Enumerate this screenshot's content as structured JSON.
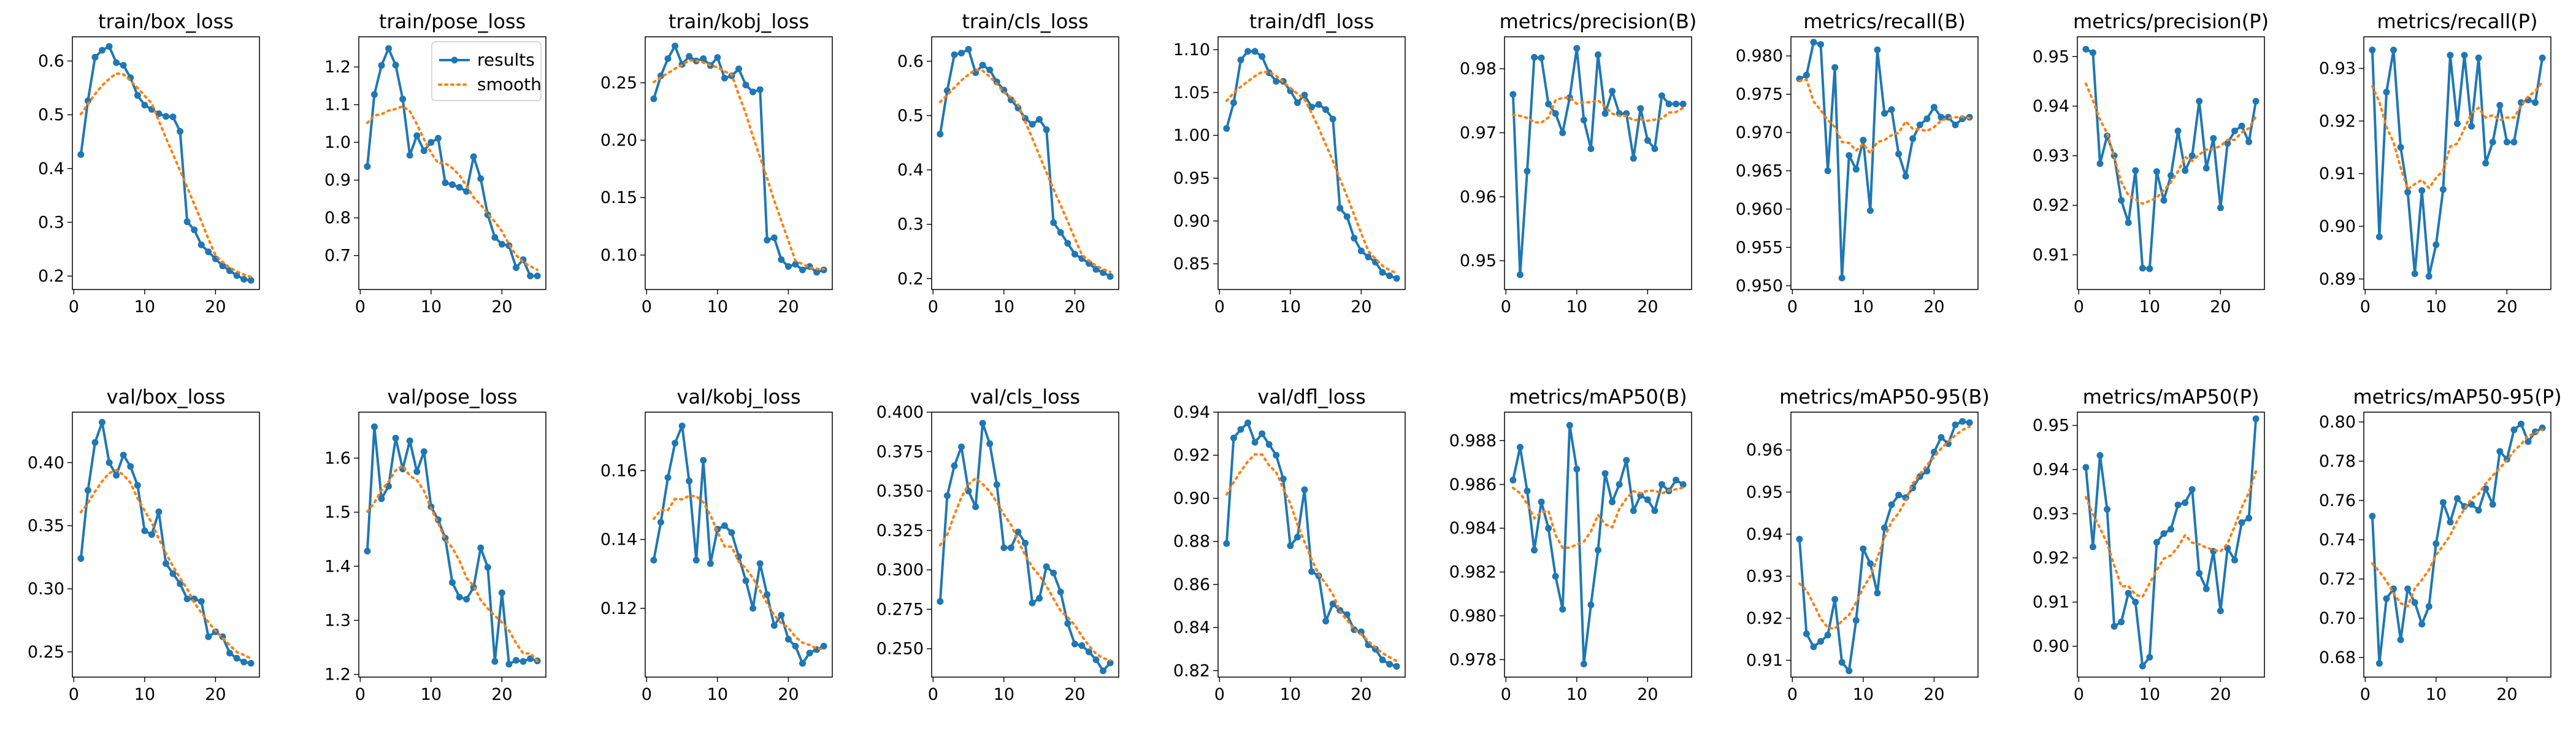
{
  "chart_data": {
    "type": "line",
    "legend": {
      "location": "upper right",
      "entries": [
        "results",
        "smooth"
      ]
    },
    "colors": {
      "results": "#1f77b4",
      "smooth": "#ff7f0e"
    },
    "x": [
      1,
      2,
      3,
      4,
      5,
      6,
      7,
      8,
      9,
      10,
      11,
      12,
      13,
      14,
      15,
      16,
      17,
      18,
      19,
      20,
      21,
      22,
      23,
      24,
      25
    ],
    "panels": [
      {
        "title": "train/box_loss",
        "ylim": [
          0.175,
          0.645
        ],
        "yticks": [
          0.2,
          0.3,
          0.4,
          0.5,
          0.6
        ],
        "ytick_labels": [
          "0.2",
          "0.3",
          "0.4",
          "0.5",
          "0.6"
        ],
        "xticks": [
          0,
          10,
          20
        ],
        "values": [
          0.426,
          0.526,
          0.607,
          0.62,
          0.627,
          0.597,
          0.592,
          0.569,
          0.536,
          0.518,
          0.51,
          0.502,
          0.497,
          0.496,
          0.469,
          0.301,
          0.286,
          0.258,
          0.245,
          0.232,
          0.219,
          0.21,
          0.201,
          0.194,
          0.192
        ]
      },
      {
        "title": "train/pose_loss",
        "ylim": [
          0.61,
          1.28
        ],
        "yticks": [
          0.7,
          0.8,
          0.9,
          1.0,
          1.1,
          1.2
        ],
        "ytick_labels": [
          "0.7",
          "0.8",
          "0.9",
          "1.0",
          "1.1",
          "1.2"
        ],
        "xticks": [
          0,
          10,
          20
        ],
        "values": [
          0.936,
          1.127,
          1.204,
          1.249,
          1.205,
          1.115,
          0.966,
          1.018,
          0.978,
          1.0,
          1.011,
          0.893,
          0.888,
          0.881,
          0.87,
          0.962,
          0.904,
          0.808,
          0.748,
          0.73,
          0.726,
          0.668,
          0.689,
          0.646,
          0.646
        ]
      },
      {
        "title": "train/kobj_loss",
        "ylim": [
          0.07,
          0.29
        ],
        "yticks": [
          0.1,
          0.15,
          0.2,
          0.25
        ],
        "ytick_labels": [
          "0.10",
          "0.15",
          "0.20",
          "0.25"
        ],
        "xticks": [
          0,
          10,
          20
        ],
        "values": [
          0.236,
          0.256,
          0.271,
          0.282,
          0.266,
          0.273,
          0.269,
          0.271,
          0.265,
          0.272,
          0.254,
          0.256,
          0.262,
          0.248,
          0.242,
          0.244,
          0.113,
          0.115,
          0.096,
          0.09,
          0.092,
          0.087,
          0.09,
          0.085,
          0.087
        ]
      },
      {
        "title": "train/cls_loss",
        "ylim": [
          0.18,
          0.645
        ],
        "yticks": [
          0.2,
          0.3,
          0.4,
          0.5,
          0.6
        ],
        "ytick_labels": [
          "0.2",
          "0.3",
          "0.4",
          "0.5",
          "0.6"
        ],
        "xticks": [
          0,
          10,
          20
        ],
        "values": [
          0.466,
          0.546,
          0.612,
          0.615,
          0.622,
          0.579,
          0.593,
          0.584,
          0.562,
          0.547,
          0.529,
          0.514,
          0.495,
          0.484,
          0.493,
          0.474,
          0.303,
          0.285,
          0.265,
          0.245,
          0.237,
          0.228,
          0.217,
          0.211,
          0.204
        ]
      },
      {
        "title": "train/dfl_loss",
        "ylim": [
          0.82,
          1.115
        ],
        "yticks": [
          0.85,
          0.9,
          0.95,
          1.0,
          1.05,
          1.1
        ],
        "ytick_labels": [
          "0.85",
          "0.90",
          "0.95",
          "1.00",
          "1.05",
          "1.10"
        ],
        "xticks": [
          0,
          10,
          20
        ],
        "values": [
          1.008,
          1.038,
          1.088,
          1.098,
          1.098,
          1.092,
          1.073,
          1.063,
          1.063,
          1.052,
          1.038,
          1.047,
          1.033,
          1.036,
          1.03,
          1.019,
          0.915,
          0.905,
          0.88,
          0.865,
          0.858,
          0.852,
          0.84,
          0.836,
          0.833
        ]
      },
      {
        "title": "metrics/precision(B)",
        "ylim": [
          0.9455,
          0.985
        ],
        "yticks": [
          0.95,
          0.96,
          0.97,
          0.98
        ],
        "ytick_labels": [
          "0.95",
          "0.96",
          "0.97",
          "0.98"
        ],
        "xticks": [
          0,
          10,
          20
        ],
        "values": [
          0.976,
          0.9478,
          0.964,
          0.9818,
          0.9817,
          0.9745,
          0.973,
          0.97,
          0.9755,
          0.9832,
          0.972,
          0.9675,
          0.9822,
          0.973,
          0.9765,
          0.973,
          0.973,
          0.966,
          0.9738,
          0.9688,
          0.9675,
          0.9758,
          0.9745,
          0.9745,
          0.9745
        ]
      },
      {
        "title": "metrics/recall(B)",
        "ylim": [
          0.9495,
          0.9825
        ],
        "yticks": [
          0.95,
          0.955,
          0.96,
          0.965,
          0.97,
          0.975,
          0.98
        ],
        "ytick_labels": [
          "0.950",
          "0.955",
          "0.960",
          "0.965",
          "0.970",
          "0.975",
          "0.980"
        ],
        "xticks": [
          0,
          10,
          20
        ],
        "values": [
          0.977,
          0.9775,
          0.9818,
          0.9815,
          0.965,
          0.9785,
          0.951,
          0.967,
          0.9652,
          0.969,
          0.9598,
          0.9808,
          0.9725,
          0.973,
          0.9672,
          0.9643,
          0.9692,
          0.971,
          0.9718,
          0.9733,
          0.972,
          0.972,
          0.971,
          0.9718,
          0.972
        ]
      },
      {
        "title": "metrics/precision(P)",
        "ylim": [
          0.903,
          0.954
        ],
        "yticks": [
          0.91,
          0.92,
          0.93,
          0.94,
          0.95
        ],
        "ytick_labels": [
          "0.91",
          "0.92",
          "0.93",
          "0.94",
          "0.95"
        ],
        "xticks": [
          0,
          10,
          20
        ],
        "values": [
          0.9515,
          0.9508,
          0.9284,
          0.934,
          0.93,
          0.921,
          0.9165,
          0.927,
          0.9073,
          0.9072,
          0.9268,
          0.921,
          0.926,
          0.935,
          0.927,
          0.93,
          0.941,
          0.9275,
          0.9335,
          0.9195,
          0.9325,
          0.935,
          0.936,
          0.9328,
          0.941
        ]
      },
      {
        "title": "metrics/recall(P)",
        "ylim": [
          0.888,
          0.936
        ],
        "yticks": [
          0.89,
          0.9,
          0.91,
          0.92,
          0.93
        ],
        "ytick_labels": [
          "0.89",
          "0.90",
          "0.91",
          "0.92",
          "0.93"
        ],
        "xticks": [
          0,
          10,
          20
        ],
        "values": [
          0.9335,
          0.898,
          0.9255,
          0.9335,
          0.915,
          0.9065,
          0.891,
          0.9068,
          0.8905,
          0.8965,
          0.907,
          0.9325,
          0.9195,
          0.9325,
          0.919,
          0.932,
          0.912,
          0.916,
          0.923,
          0.916,
          0.916,
          0.9235,
          0.924,
          0.9235,
          0.932
        ]
      },
      {
        "title": "val/box_loss",
        "ylim": [
          0.23,
          0.44
        ],
        "yticks": [
          0.25,
          0.3,
          0.35,
          0.4
        ],
        "ytick_labels": [
          "0.25",
          "0.30",
          "0.35",
          "0.40"
        ],
        "xticks": [
          0,
          10,
          20
        ],
        "values": [
          0.324,
          0.378,
          0.416,
          0.432,
          0.4,
          0.39,
          0.406,
          0.397,
          0.382,
          0.346,
          0.343,
          0.361,
          0.32,
          0.312,
          0.304,
          0.292,
          0.292,
          0.29,
          0.262,
          0.266,
          0.262,
          0.249,
          0.245,
          0.242,
          0.241
        ]
      },
      {
        "title": "val/pose_loss",
        "ylim": [
          1.195,
          1.685
        ],
        "yticks": [
          1.2,
          1.3,
          1.4,
          1.5,
          1.6
        ],
        "ytick_labels": [
          "1.2",
          "1.3",
          "1.4",
          "1.5",
          "1.6"
        ],
        "xticks": [
          0,
          10,
          20
        ],
        "values": [
          1.428,
          1.658,
          1.525,
          1.548,
          1.637,
          1.58,
          1.632,
          1.575,
          1.612,
          1.51,
          1.486,
          1.452,
          1.37,
          1.343,
          1.339,
          1.361,
          1.434,
          1.398,
          1.224,
          1.351,
          1.219,
          1.226,
          1.224,
          1.229,
          1.225
        ]
      },
      {
        "title": "val/kobj_loss",
        "ylim": [
          0.1,
          0.177
        ],
        "yticks": [
          0.12,
          0.14,
          0.16
        ],
        "ytick_labels": [
          "0.12",
          "0.14",
          "0.16"
        ],
        "xticks": [
          0,
          10,
          20
        ],
        "values": [
          0.134,
          0.145,
          0.158,
          0.168,
          0.173,
          0.157,
          0.134,
          0.163,
          0.133,
          0.143,
          0.144,
          0.142,
          0.135,
          0.128,
          0.12,
          0.133,
          0.124,
          0.115,
          0.118,
          0.111,
          0.109,
          0.104,
          0.107,
          0.108,
          0.109
        ]
      },
      {
        "title": "val/cls_loss",
        "ylim": [
          0.232,
          0.4
        ],
        "yticks": [
          0.25,
          0.275,
          0.3,
          0.325,
          0.35,
          0.375,
          0.4
        ],
        "ytick_labels": [
          "0.250",
          "0.275",
          "0.300",
          "0.325",
          "0.350",
          "0.375",
          "0.400"
        ],
        "xticks": [
          0,
          10,
          20
        ],
        "values": [
          0.28,
          0.347,
          0.366,
          0.378,
          0.35,
          0.34,
          0.393,
          0.38,
          0.354,
          0.314,
          0.314,
          0.324,
          0.317,
          0.279,
          0.282,
          0.302,
          0.298,
          0.286,
          0.266,
          0.253,
          0.252,
          0.248,
          0.243,
          0.236,
          0.241
        ]
      },
      {
        "title": "val/dfl_loss",
        "ylim": [
          0.817,
          0.94
        ],
        "yticks": [
          0.82,
          0.84,
          0.86,
          0.88,
          0.9,
          0.92,
          0.94
        ],
        "ytick_labels": [
          "0.82",
          "0.84",
          "0.86",
          "0.88",
          "0.90",
          "0.92",
          "0.94"
        ],
        "xticks": [
          0,
          10,
          20
        ],
        "values": [
          0.879,
          0.928,
          0.932,
          0.935,
          0.926,
          0.93,
          0.925,
          0.92,
          0.909,
          0.878,
          0.882,
          0.904,
          0.866,
          0.864,
          0.843,
          0.851,
          0.848,
          0.846,
          0.839,
          0.838,
          0.832,
          0.83,
          0.825,
          0.823,
          0.822
        ]
      },
      {
        "title": "metrics/mAP50(B)",
        "ylim": [
          0.9772,
          0.9893
        ],
        "yticks": [
          0.978,
          0.98,
          0.982,
          0.984,
          0.986,
          0.988
        ],
        "ytick_labels": [
          "0.978",
          "0.980",
          "0.982",
          "0.984",
          "0.986",
          "0.988"
        ],
        "xticks": [
          0,
          10,
          20
        ],
        "values": [
          0.9862,
          0.9877,
          0.9857,
          0.983,
          0.9852,
          0.984,
          0.9818,
          0.9803,
          0.9887,
          0.9867,
          0.9778,
          0.9805,
          0.983,
          0.9865,
          0.9852,
          0.986,
          0.9871,
          0.9848,
          0.9855,
          0.9853,
          0.9848,
          0.986,
          0.9857,
          0.9862,
          0.986
        ]
      },
      {
        "title": "metrics/mAP50-95(B)",
        "ylim": [
          0.906,
          0.969
        ],
        "yticks": [
          0.91,
          0.92,
          0.93,
          0.94,
          0.95,
          0.96
        ],
        "ytick_labels": [
          "0.91",
          "0.92",
          "0.93",
          "0.94",
          "0.95",
          "0.96"
        ],
        "xticks": [
          0,
          10,
          20
        ],
        "values": [
          0.9388,
          0.9163,
          0.9132,
          0.9145,
          0.916,
          0.9245,
          0.9095,
          0.9075,
          0.9195,
          0.9365,
          0.933,
          0.926,
          0.9415,
          0.947,
          0.9493,
          0.9487,
          0.951,
          0.9537,
          0.955,
          0.9595,
          0.963,
          0.9615,
          0.966,
          0.9668,
          0.9665
        ]
      },
      {
        "title": "metrics/mAP50(P)",
        "ylim": [
          0.893,
          0.953
        ],
        "yticks": [
          0.9,
          0.91,
          0.92,
          0.93,
          0.94,
          0.95
        ],
        "ytick_labels": [
          "0.90",
          "0.91",
          "0.92",
          "0.93",
          "0.94",
          "0.95"
        ],
        "xticks": [
          0,
          10,
          20
        ],
        "values": [
          0.9405,
          0.9225,
          0.9432,
          0.931,
          0.9045,
          0.9055,
          0.912,
          0.91,
          0.8955,
          0.8975,
          0.9235,
          0.9255,
          0.9265,
          0.932,
          0.9325,
          0.9355,
          0.9165,
          0.913,
          0.9215,
          0.908,
          0.9222,
          0.9195,
          0.928,
          0.929,
          0.9515
        ]
      },
      {
        "title": "metrics/mAP50-95(P)",
        "ylim": [
          0.67,
          0.805
        ],
        "yticks": [
          0.68,
          0.7,
          0.72,
          0.74,
          0.76,
          0.78,
          0.8
        ],
        "ytick_labels": [
          "0.68",
          "0.70",
          "0.72",
          "0.74",
          "0.76",
          "0.78",
          "0.80"
        ],
        "xticks": [
          0,
          10,
          20
        ],
        "values": [
          0.752,
          0.677,
          0.71,
          0.715,
          0.689,
          0.715,
          0.708,
          0.697,
          0.706,
          0.738,
          0.759,
          0.749,
          0.761,
          0.757,
          0.758,
          0.755,
          0.766,
          0.758,
          0.785,
          0.781,
          0.796,
          0.799,
          0.79,
          0.795,
          0.797
        ]
      }
    ]
  }
}
